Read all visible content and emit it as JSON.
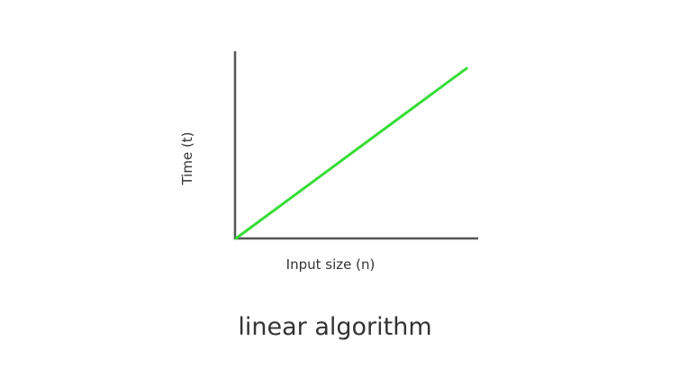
{
  "chart_data": {
    "type": "line",
    "title": "linear algorithm",
    "xlabel": "Input size (n)",
    "ylabel": "Time (t)",
    "x": [
      0,
      1
    ],
    "series": [
      {
        "values": [
          0,
          1
        ]
      }
    ],
    "xlim": [
      0,
      1.05
    ],
    "ylim": [
      0,
      1.1
    ],
    "grid": false,
    "legend": "none",
    "colors": {
      "line": "#33dd33",
      "axis": "#555555",
      "text": "#333333"
    }
  }
}
